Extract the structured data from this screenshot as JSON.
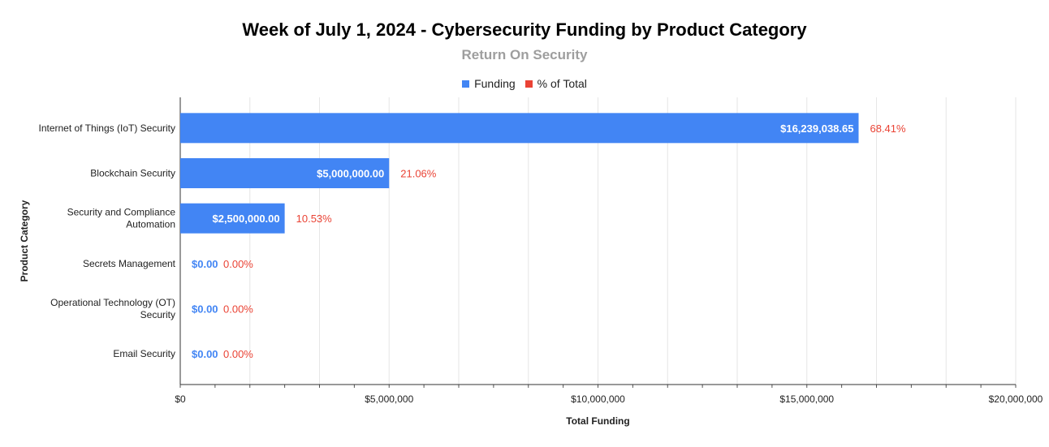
{
  "chart_data": {
    "type": "bar",
    "orientation": "horizontal",
    "title": "Week of July 1, 2024 - Cybersecurity Funding by Product Category",
    "subtitle": "Return On Security",
    "xlabel": "Total Funding",
    "ylabel": "Product Category",
    "xlim": [
      0,
      20000000
    ],
    "xticks": [
      0,
      5000000,
      10000000,
      15000000,
      20000000
    ],
    "xtick_labels": [
      "$0",
      "$5,000,000",
      "$10,000,000",
      "$15,000,000",
      "$20,000,000"
    ],
    "grid": true,
    "legend_position": "top-center",
    "categories": [
      [
        "Internet of Things (IoT) Security"
      ],
      [
        "Blockchain Security"
      ],
      [
        "Security and Compliance",
        "Automation"
      ],
      [
        "Secrets Management"
      ],
      [
        "Operational Technology (OT)",
        "Security"
      ],
      [
        "Email Security"
      ]
    ],
    "series": [
      {
        "name": "Funding",
        "color": "#4285f4",
        "values": [
          16239038.65,
          5000000,
          2500000,
          0,
          0,
          0
        ],
        "labels": [
          "$16,239,038.65",
          "$5,000,000.00",
          "$2,500,000.00",
          "$0.00",
          "$0.00",
          "$0.00"
        ]
      },
      {
        "name": "% of Total",
        "color": "#ea4335",
        "values": [
          68.41,
          21.06,
          10.53,
          0,
          0,
          0
        ],
        "labels": [
          "68.41%",
          "21.06%",
          "10.53%",
          "0.00%",
          "0.00%",
          "0.00%"
        ]
      }
    ]
  }
}
